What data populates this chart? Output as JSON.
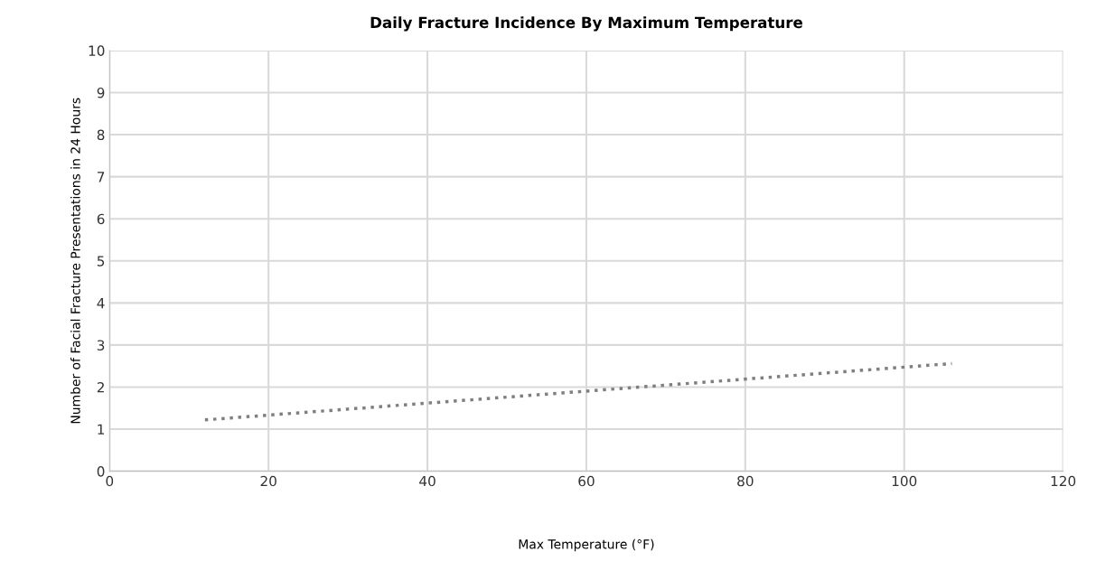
{
  "chart_data": {
    "type": "line",
    "title": "Daily Fracture Incidence By Maximum Temperature",
    "xlabel": "Max Temperature (°F)",
    "ylabel": "Number of Facial Fracture Presentations in 24 Hours",
    "series": [
      {
        "color": "#7f7f7f",
        "x": [
          12,
          106
        ],
        "values": [
          1.22,
          2.56
        ],
        "line_style": "dotted"
      }
    ],
    "xlim": [
      0,
      120
    ],
    "xticks": [
      0,
      20,
      40,
      60,
      80,
      100,
      120
    ],
    "ylim": [
      0,
      10
    ],
    "yticks": [
      0,
      1,
      2,
      3,
      4,
      5,
      6,
      7,
      8,
      9,
      10
    ],
    "grid": true,
    "marker": "none"
  }
}
